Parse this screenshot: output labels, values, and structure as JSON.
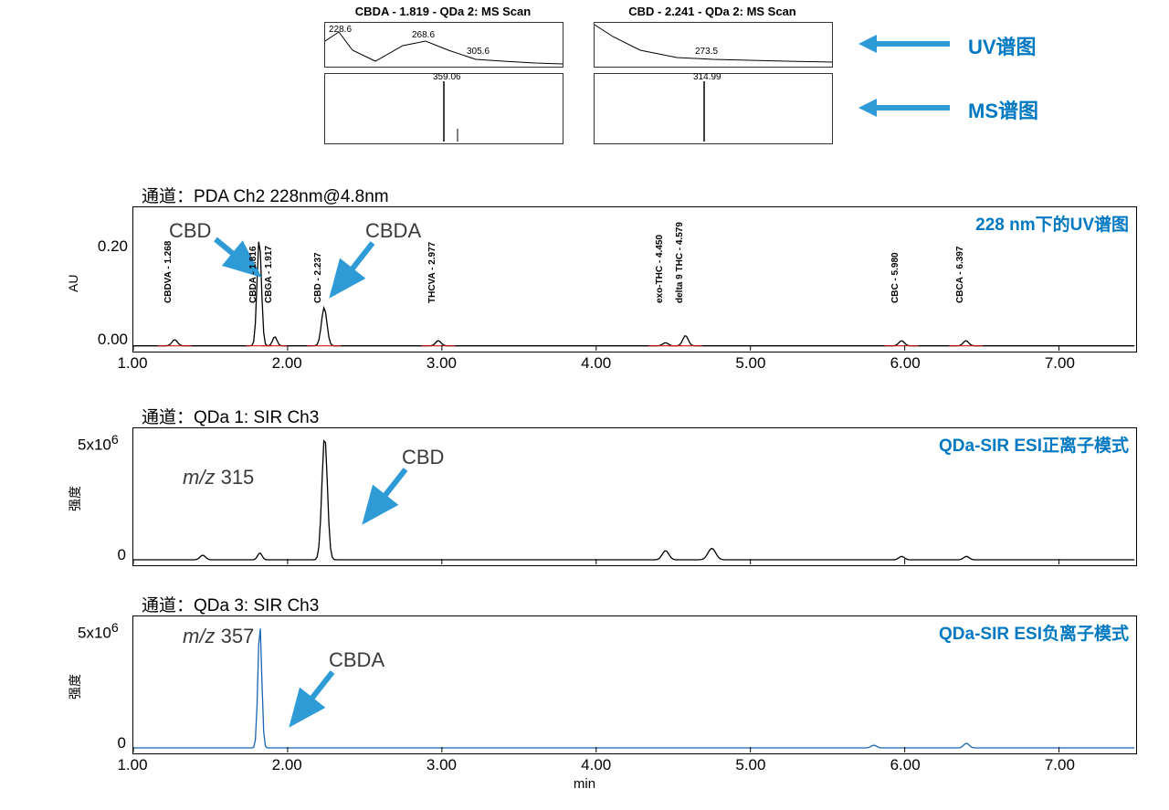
{
  "colors": {
    "accent": "#0079c2",
    "arrow": "#2e9bd6",
    "trace_black": "#000000",
    "trace_blue": "#1864b5",
    "trace_red": "#d01818",
    "border": "#000000",
    "bg": "#ffffff"
  },
  "thumbs": {
    "uv_label": "UV谱图",
    "ms_label": "MS谱图",
    "left": {
      "title": "CBDA - 1.819 - QDa 2: MS Scan",
      "uv_peaks": [
        "228.6",
        "268.6",
        "305.6"
      ],
      "ms_peak": "359.06"
    },
    "right": {
      "title": "CBD - 2.241 - QDa 2: MS Scan",
      "uv_peaks": [
        "273.5"
      ],
      "ms_peak": "314.99"
    }
  },
  "xaxis": {
    "min": 1.0,
    "max": 7.5,
    "ticks": [
      1.0,
      2.0,
      3.0,
      4.0,
      5.0,
      6.0,
      7.0
    ],
    "label": "min"
  },
  "chrom1": {
    "pre": "通道：",
    "channel": "PDA Ch2 228nm@4.8nm",
    "right_label": "228 nm下的UV谱图",
    "ylabel": "AU",
    "ymin": 0,
    "ymax": 0.26,
    "yticks": [
      "0.00",
      "0.20"
    ],
    "ann_cbd": "CBD",
    "ann_cbda": "CBDA",
    "trace_color": "#000000",
    "baseline_color": "#d01818",
    "peaks": [
      {
        "rt": 1.268,
        "h": 0.012,
        "w": 0.05,
        "label": "CBDVA - 1.268"
      },
      {
        "rt": 1.816,
        "h": 0.21,
        "w": 0.04,
        "label": "CBDA - 1.816"
      },
      {
        "rt": 1.917,
        "h": 0.018,
        "w": 0.04,
        "label": "CBGA - 1.917"
      },
      {
        "rt": 2.237,
        "h": 0.075,
        "w": 0.05,
        "label": "CBD - 2.237"
      },
      {
        "rt": 2.977,
        "h": 0.01,
        "w": 0.05,
        "label": "THCVA - 2.977"
      },
      {
        "rt": 4.45,
        "h": 0.006,
        "w": 0.05,
        "label": "exo-THC - 4.450"
      },
      {
        "rt": 4.579,
        "h": 0.02,
        "w": 0.05,
        "label": "delta 9 THC - 4.579"
      },
      {
        "rt": 5.98,
        "h": 0.01,
        "w": 0.05,
        "label": "CBC - 5.980"
      },
      {
        "rt": 6.397,
        "h": 0.01,
        "w": 0.05,
        "label": "CBCA - 6.397"
      }
    ]
  },
  "chrom2": {
    "pre": "通道：",
    "channel": "QDa 1: SIR Ch3",
    "right_label": "QDa-SIR ESI正离子模式",
    "ylabel": "强度",
    "ymin": 0,
    "ymax": 5500000.0,
    "mz_label_i": "m/z",
    "mz_value": "315",
    "peak_label": "CBD",
    "trace_color": "#000000",
    "peaks": [
      {
        "rt": 1.45,
        "h": 200000.0,
        "w": 0.05
      },
      {
        "rt": 1.82,
        "h": 300000.0,
        "w": 0.04
      },
      {
        "rt": 2.24,
        "h": 5400000.0,
        "w": 0.05
      },
      {
        "rt": 4.45,
        "h": 400000.0,
        "w": 0.06
      },
      {
        "rt": 4.75,
        "h": 500000.0,
        "w": 0.07
      },
      {
        "rt": 5.98,
        "h": 150000.0,
        "w": 0.05
      },
      {
        "rt": 6.4,
        "h": 150000.0,
        "w": 0.05
      }
    ]
  },
  "chrom3": {
    "pre": "通道：",
    "channel": "QDa 3: SIR Ch3",
    "right_label": "QDa-SIR ESI负离子模式",
    "ylabel": "强度",
    "ymin": 0,
    "ymax": 5500000.0,
    "mz_label_i": "m/z",
    "mz_value": "357",
    "peak_label": "CBDA",
    "trace_color": "#1864b5",
    "peaks": [
      {
        "rt": 1.82,
        "h": 5400000.0,
        "w": 0.035
      },
      {
        "rt": 5.8,
        "h": 120000.0,
        "w": 0.05
      },
      {
        "rt": 6.4,
        "h": 200000.0,
        "w": 0.05
      }
    ]
  }
}
